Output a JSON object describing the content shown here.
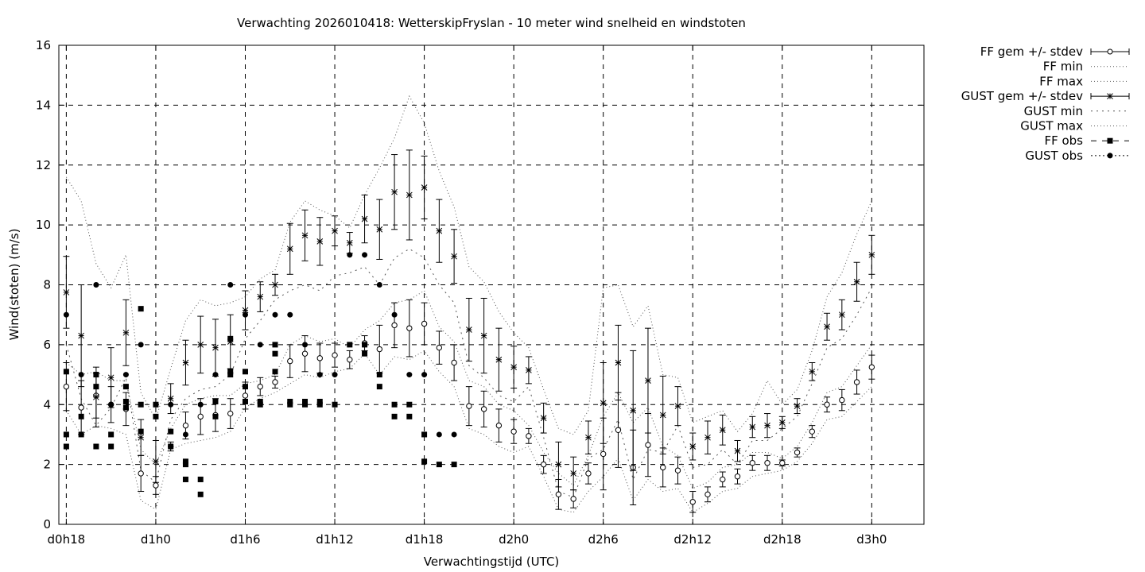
{
  "chart_data": {
    "type": "scatter",
    "title": "Verwachting 2026010418: WetterskipFryslan - 10 meter wind snelheid en windstoten",
    "xlabel": "Verwachtingstijd (UTC)",
    "ylabel": "Wind(stoten) (m/s)",
    "xlim": [
      -0.5,
      57.5
    ],
    "ylim": [
      0,
      16
    ],
    "x_unit": "hours after d0h18",
    "yticks": [
      0,
      2,
      4,
      6,
      8,
      10,
      12,
      14,
      16
    ],
    "xticks": [
      {
        "x": 0,
        "label": "d0h18"
      },
      {
        "x": 6,
        "label": "d1h0"
      },
      {
        "x": 12,
        "label": "d1h6"
      },
      {
        "x": 18,
        "label": "d1h12"
      },
      {
        "x": 24,
        "label": "d1h18"
      },
      {
        "x": 30,
        "label": "d2h0"
      },
      {
        "x": 36,
        "label": "d2h6"
      },
      {
        "x": 42,
        "label": "d2h12"
      },
      {
        "x": 48,
        "label": "d2h18"
      },
      {
        "x": 54,
        "label": "d3h0"
      }
    ],
    "grid": true,
    "legend_position": "right, outside plot",
    "legend": [
      {
        "label": "FF gem +/- stdev",
        "style": "errbar-circle"
      },
      {
        "label": "FF min",
        "style": "dotted"
      },
      {
        "label": "FF max",
        "style": "dotted"
      },
      {
        "label": "GUST gem +/- stdev",
        "style": "errbar-star"
      },
      {
        "label": "GUST min",
        "style": "dotted-coarse"
      },
      {
        "label": "GUST max",
        "style": "dotted"
      },
      {
        "label": "FF obs",
        "style": "dash-square"
      },
      {
        "label": "GUST obs",
        "style": "dot-circle"
      }
    ],
    "series": [
      {
        "name": "FF gem +/- stdev",
        "x": [
          0,
          1,
          2,
          3,
          4,
          5,
          6,
          7,
          8,
          9,
          10,
          11,
          12,
          13,
          14,
          15,
          16,
          17,
          18,
          19,
          20,
          21,
          22,
          23,
          24,
          25,
          26,
          27,
          28,
          29,
          30,
          31,
          32,
          33,
          34,
          35,
          36,
          37,
          38,
          39,
          40,
          41,
          42,
          43,
          44,
          45,
          46,
          47,
          48,
          49,
          50,
          51,
          52,
          53,
          54
        ],
        "mean": [
          4.6,
          3.9,
          4.3,
          4.0,
          3.85,
          1.7,
          1.3,
          2.6,
          3.3,
          3.6,
          3.65,
          3.7,
          4.3,
          4.6,
          4.75,
          5.45,
          5.7,
          5.55,
          5.65,
          5.5,
          6.05,
          5.85,
          6.65,
          6.55,
          6.7,
          5.9,
          5.4,
          3.95,
          3.85,
          3.3,
          3.1,
          2.95,
          2.0,
          1.0,
          0.85,
          1.7,
          2.35,
          3.15,
          1.9,
          2.65,
          1.9,
          1.8,
          0.75,
          1.0,
          1.5,
          1.6,
          2.05,
          2.05,
          2.05,
          2.4,
          3.1,
          4.0,
          4.15,
          4.75,
          5.25
        ],
        "stdev": [
          0.8,
          0.9,
          0.75,
          0.6,
          0.55,
          0.6,
          0.3,
          0.15,
          0.45,
          0.6,
          0.55,
          0.5,
          0.45,
          0.3,
          0.2,
          0.55,
          0.6,
          0.5,
          0.4,
          0.3,
          0.25,
          0.8,
          0.75,
          0.95,
          0.7,
          0.55,
          0.6,
          0.65,
          0.6,
          0.55,
          0.4,
          0.25,
          0.3,
          0.5,
          0.3,
          0.35,
          1.2,
          1.25,
          1.25,
          1.05,
          0.65,
          0.45,
          0.35,
          0.25,
          0.25,
          0.25,
          0.25,
          0.25,
          0.1,
          0.15,
          0.2,
          0.25,
          0.35,
          0.4,
          0.4
        ]
      },
      {
        "name": "FF min",
        "x": [
          0,
          1,
          2,
          3,
          4,
          5,
          6,
          7,
          8,
          9,
          10,
          11,
          12,
          13,
          14,
          15,
          16,
          17,
          18,
          19,
          20,
          21,
          22,
          23,
          24,
          25,
          26,
          27,
          28,
          29,
          30,
          31,
          32,
          33,
          34,
          35,
          36,
          37,
          38,
          39,
          40,
          41,
          42,
          43,
          44,
          45,
          46,
          47,
          48,
          49,
          50,
          51,
          52,
          53,
          54
        ],
        "values": [
          3.8,
          3.0,
          3.3,
          3.2,
          3.0,
          0.8,
          0.5,
          2.5,
          2.7,
          2.8,
          2.9,
          3.1,
          3.9,
          4.2,
          4.4,
          4.7,
          5.0,
          4.9,
          5.1,
          5.2,
          5.7,
          5.0,
          5.6,
          5.5,
          5.8,
          5.1,
          4.6,
          3.2,
          3.0,
          2.6,
          2.4,
          2.6,
          1.6,
          0.5,
          0.4,
          1.1,
          1.6,
          2.2,
          0.8,
          1.5,
          1.1,
          1.2,
          0.4,
          0.7,
          1.1,
          1.2,
          1.6,
          1.7,
          1.8,
          2.1,
          2.7,
          3.5,
          3.6,
          4.1,
          4.6
        ]
      },
      {
        "name": "FF max",
        "x": [
          0,
          1,
          2,
          3,
          4,
          5,
          6,
          7,
          8,
          9,
          10,
          11,
          12,
          13,
          14,
          15,
          16,
          17,
          18,
          19,
          20,
          21,
          22,
          23,
          24,
          25,
          26,
          27,
          28,
          29,
          30,
          31,
          32,
          33,
          34,
          35,
          36,
          37,
          38,
          39,
          40,
          41,
          42,
          43,
          44,
          45,
          46,
          47,
          48,
          49,
          50,
          51,
          52,
          53,
          54
        ],
        "values": [
          5.4,
          5.0,
          5.1,
          4.8,
          4.8,
          2.5,
          2.0,
          3.2,
          4.0,
          4.2,
          4.3,
          4.3,
          4.7,
          4.8,
          5.0,
          6.0,
          6.3,
          6.1,
          6.2,
          5.9,
          6.5,
          6.8,
          7.4,
          7.5,
          7.8,
          6.6,
          6.1,
          4.8,
          4.6,
          4.0,
          3.8,
          3.3,
          2.4,
          1.7,
          1.3,
          2.3,
          3.6,
          4.4,
          3.4,
          3.9,
          2.6,
          2.3,
          1.2,
          1.4,
          1.9,
          2.0,
          2.4,
          2.4,
          2.2,
          2.6,
          3.4,
          4.4,
          4.6,
          5.3,
          6.0
        ]
      },
      {
        "name": "GUST gem +/- stdev",
        "x": [
          0,
          1,
          2,
          3,
          4,
          5,
          6,
          7,
          8,
          9,
          10,
          11,
          12,
          13,
          14,
          15,
          16,
          17,
          18,
          19,
          20,
          21,
          22,
          23,
          24,
          25,
          26,
          27,
          28,
          29,
          30,
          31,
          32,
          33,
          34,
          35,
          36,
          37,
          38,
          39,
          40,
          41,
          42,
          43,
          44,
          45,
          46,
          47,
          48,
          49,
          50,
          51,
          52,
          53,
          54
        ],
        "mean": [
          7.75,
          6.3,
          4.25,
          4.9,
          6.4,
          2.9,
          2.1,
          4.2,
          5.4,
          6.0,
          5.9,
          6.1,
          7.15,
          7.6,
          8.0,
          9.2,
          9.65,
          9.45,
          9.8,
          9.4,
          10.2,
          9.85,
          11.1,
          11.0,
          11.25,
          9.8,
          8.95,
          6.5,
          6.3,
          5.5,
          5.25,
          5.15,
          3.55,
          2.0,
          1.7,
          2.9,
          4.05,
          5.4,
          3.8,
          4.8,
          3.65,
          3.95,
          2.6,
          2.9,
          3.15,
          2.45,
          3.25,
          3.3,
          3.4,
          3.95,
          5.1,
          6.6,
          7.0,
          8.1,
          9.0
        ]
      },
      {
        "name": "GUST gem stdev",
        "x": [
          0,
          1,
          2,
          3,
          4,
          5,
          6,
          7,
          8,
          9,
          10,
          11,
          12,
          13,
          14,
          15,
          16,
          17,
          18,
          19,
          20,
          21,
          22,
          23,
          24,
          25,
          26,
          27,
          28,
          29,
          30,
          31,
          32,
          33,
          34,
          35,
          36,
          37,
          38,
          39,
          40,
          41,
          42,
          43,
          44,
          45,
          46,
          47,
          48,
          49,
          50,
          51,
          52,
          53,
          54
        ],
        "values": [
          1.2,
          1.7,
          1.0,
          1.0,
          1.1,
          0.6,
          0.7,
          0.5,
          0.75,
          0.95,
          0.95,
          0.9,
          0.65,
          0.5,
          0.35,
          0.85,
          0.85,
          0.8,
          0.5,
          0.35,
          0.8,
          1.0,
          1.25,
          1.5,
          1.05,
          1.05,
          0.9,
          1.05,
          1.25,
          1.05,
          0.7,
          0.45,
          0.5,
          0.75,
          0.55,
          0.55,
          1.35,
          1.25,
          2.0,
          1.75,
          1.3,
          0.65,
          0.45,
          0.55,
          0.5,
          0.35,
          0.35,
          0.4,
          0.2,
          0.25,
          0.3,
          0.45,
          0.5,
          0.65,
          0.65
        ]
      },
      {
        "name": "GUST min",
        "x": [
          0,
          1,
          2,
          3,
          4,
          5,
          6,
          7,
          8,
          9,
          10,
          11,
          12,
          13,
          14,
          15,
          16,
          17,
          18,
          19,
          20,
          21,
          22,
          23,
          24,
          25,
          26,
          27,
          28,
          29,
          30,
          31,
          32,
          33,
          34,
          35,
          36,
          37,
          38,
          39,
          40,
          41,
          42,
          43,
          44,
          45,
          46,
          47,
          48,
          49,
          50,
          51,
          52,
          53,
          54
        ],
        "values": [
          6.0,
          4.2,
          3.3,
          3.9,
          4.9,
          1.8,
          1.4,
          3.5,
          4.2,
          4.5,
          4.6,
          5.0,
          6.2,
          6.8,
          7.5,
          7.8,
          8.0,
          7.8,
          8.3,
          8.4,
          8.6,
          8.0,
          8.9,
          9.2,
          8.9,
          8.0,
          7.4,
          5.3,
          4.9,
          4.3,
          4.1,
          4.6,
          2.9,
          1.1,
          0.9,
          2.2,
          2.5,
          3.5,
          1.5,
          2.5,
          2.4,
          3.3,
          1.9,
          2.0,
          2.5,
          2.0,
          2.8,
          2.8,
          3.2,
          3.6,
          4.7,
          5.9,
          6.2,
          7.0,
          7.9
        ]
      },
      {
        "name": "GUST max",
        "x": [
          0,
          1,
          2,
          3,
          4,
          5,
          6,
          7,
          8,
          9,
          10,
          11,
          12,
          13,
          14,
          15,
          16,
          17,
          18,
          19,
          20,
          21,
          22,
          23,
          24,
          25,
          26,
          27,
          28,
          29,
          30,
          31,
          32,
          33,
          34,
          35,
          36,
          37,
          38,
          39,
          40,
          41,
          42,
          43,
          44,
          45,
          46,
          47,
          48,
          49,
          50,
          51,
          52,
          53,
          54
        ],
        "values": [
          11.6,
          10.8,
          8.7,
          7.9,
          9.0,
          4.4,
          3.5,
          5.2,
          6.8,
          7.5,
          7.3,
          7.4,
          7.6,
          8.2,
          8.5,
          10.1,
          10.8,
          10.5,
          10.3,
          9.9,
          11.0,
          11.9,
          12.9,
          14.3,
          13.4,
          11.8,
          10.6,
          8.6,
          8.1,
          7.1,
          6.4,
          5.9,
          4.5,
          3.2,
          3.0,
          3.8,
          7.9,
          8.0,
          6.6,
          7.3,
          5.0,
          4.9,
          3.4,
          3.6,
          3.8,
          3.1,
          3.7,
          4.8,
          4.0,
          4.5,
          5.8,
          7.6,
          8.4,
          9.7,
          10.8
        ]
      },
      {
        "name": "FF obs",
        "points": [
          [
            0,
            5.1
          ],
          [
            0,
            3.0
          ],
          [
            0,
            2.6
          ],
          [
            1,
            3.6
          ],
          [
            1,
            3.0
          ],
          [
            2,
            5.0
          ],
          [
            2,
            4.6
          ],
          [
            2,
            2.6
          ],
          [
            3,
            3.0
          ],
          [
            3,
            2.6
          ],
          [
            4,
            4.6
          ],
          [
            4,
            4.1
          ],
          [
            4,
            3.9
          ],
          [
            5,
            7.2
          ],
          [
            5,
            4.0
          ],
          [
            5,
            3.1
          ],
          [
            6,
            4.0
          ],
          [
            6,
            3.6
          ],
          [
            7,
            3.1
          ],
          [
            7,
            2.6
          ],
          [
            8,
            2.1
          ],
          [
            8,
            2.0
          ],
          [
            8,
            1.5
          ],
          [
            9,
            1.5
          ],
          [
            9,
            1.0
          ],
          [
            10,
            4.1
          ],
          [
            10,
            3.6
          ],
          [
            11,
            6.2
          ],
          [
            11,
            5.1
          ],
          [
            11,
            5.0
          ],
          [
            12,
            5.1
          ],
          [
            12,
            4.6
          ],
          [
            12,
            4.1
          ],
          [
            13,
            4.1
          ],
          [
            13,
            4.0
          ],
          [
            14,
            6.0
          ],
          [
            14,
            5.7
          ],
          [
            14,
            5.1
          ],
          [
            15,
            4.1
          ],
          [
            15,
            4.0
          ],
          [
            16,
            4.1
          ],
          [
            16,
            4.0
          ],
          [
            17,
            4.1
          ],
          [
            17,
            4.0
          ],
          [
            18,
            4.0
          ],
          [
            19,
            6.0
          ],
          [
            20,
            6.0
          ],
          [
            20,
            5.7
          ],
          [
            21,
            5.0
          ],
          [
            21,
            4.6
          ],
          [
            22,
            4.0
          ],
          [
            22,
            3.6
          ],
          [
            23,
            4.0
          ],
          [
            23,
            3.6
          ],
          [
            24,
            3.0
          ],
          [
            24,
            2.1
          ],
          [
            25,
            2.0
          ],
          [
            26,
            2.0
          ]
        ]
      },
      {
        "name": "GUST obs",
        "points": [
          [
            0,
            7.0
          ],
          [
            1,
            5.0
          ],
          [
            2,
            8.0
          ],
          [
            3,
            4.0
          ],
          [
            4,
            5.0
          ],
          [
            5,
            6.0
          ],
          [
            6,
            4.0
          ],
          [
            7,
            4.0
          ],
          [
            8,
            3.0
          ],
          [
            9,
            4.0
          ],
          [
            10,
            5.0
          ],
          [
            11,
            8.0
          ],
          [
            12,
            7.0
          ],
          [
            13,
            6.0
          ],
          [
            14,
            7.0
          ],
          [
            15,
            7.0
          ],
          [
            16,
            6.0
          ],
          [
            17,
            5.0
          ],
          [
            18,
            5.0
          ],
          [
            19,
            9.0
          ],
          [
            20,
            9.0
          ],
          [
            21,
            8.0
          ],
          [
            22,
            7.0
          ],
          [
            23,
            5.0
          ],
          [
            24,
            5.0
          ],
          [
            25,
            3.0
          ],
          [
            26,
            3.0
          ]
        ]
      }
    ]
  }
}
